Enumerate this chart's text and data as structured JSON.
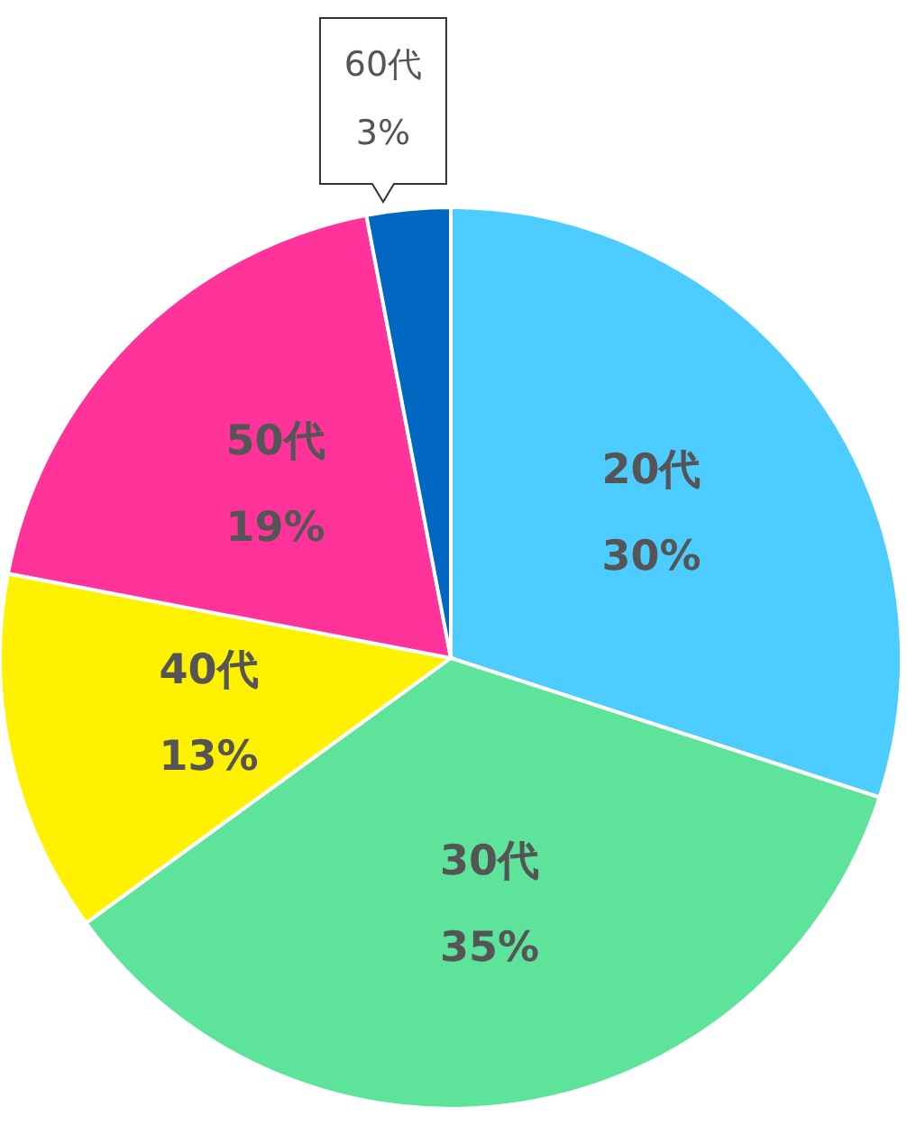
{
  "chart_data": {
    "type": "pie",
    "categories": [
      "20代",
      "30代",
      "40代",
      "50代",
      "60代"
    ],
    "values": [
      30,
      35,
      13,
      19,
      3
    ],
    "value_labels": [
      "30%",
      "35%",
      "13%",
      "19%",
      "3%"
    ],
    "colors": [
      "#4dcdff",
      "#5ee39a",
      "#fff100",
      "#ff3399",
      "#0068c0"
    ]
  }
}
